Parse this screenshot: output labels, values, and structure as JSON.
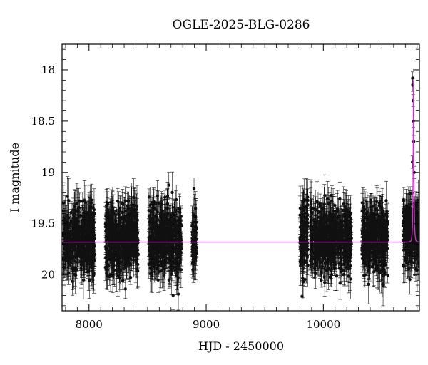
{
  "chart_data": {
    "type": "scatter",
    "title": "OGLE-2025-BLG-0286",
    "xlabel": "HJD - 2450000",
    "ylabel": "I magnitude",
    "xlim": [
      7770,
      10820
    ],
    "ylim": [
      20.35,
      17.75
    ],
    "y_inverted": true,
    "x_ticks": [
      8000,
      9000,
      10000
    ],
    "x_tick_labels": [
      "8000",
      "9000",
      "10000"
    ],
    "y_ticks": [
      18,
      18.5,
      19,
      19.5,
      20
    ],
    "y_tick_labels": [
      "18",
      "18.5",
      "19",
      "19.5",
      "20"
    ],
    "grid": false,
    "legend": "none",
    "colors": {
      "points": "#111111",
      "errorbars": "#111111",
      "model": "#cc33cc",
      "axes": "#000000"
    },
    "season_blocks": [
      {
        "x_start": 7780,
        "x_end": 8050,
        "mag_center": 19.65,
        "mag_spread": 0.3
      },
      {
        "x_start": 8140,
        "x_end": 8420,
        "mag_center": 19.65,
        "mag_spread": 0.3
      },
      {
        "x_start": 8510,
        "x_end": 8790,
        "mag_center": 19.66,
        "mag_spread": 0.32
      },
      {
        "x_start": 8880,
        "x_end": 8920,
        "mag_center": 19.65,
        "mag_spread": 0.28
      },
      {
        "x_start": 9800,
        "x_end": 9870,
        "mag_center": 19.66,
        "mag_spread": 0.35
      },
      {
        "x_start": 9890,
        "x_end": 10240,
        "mag_center": 19.66,
        "mag_spread": 0.3
      },
      {
        "x_start": 10330,
        "x_end": 10550,
        "mag_center": 19.65,
        "mag_spread": 0.3
      },
      {
        "x_start": 10680,
        "x_end": 10820,
        "mag_center": 19.6,
        "mag_spread": 0.3
      }
    ],
    "model": {
      "baseline_mag": 19.68,
      "peak_time": 10770,
      "peak_mag": 18.1,
      "tE": 7
    },
    "peak_points": [
      {
        "x": 10762,
        "y": 18.08
      },
      {
        "x": 10764,
        "y": 18.15
      },
      {
        "x": 10766,
        "y": 18.3
      },
      {
        "x": 10768,
        "y": 18.5
      },
      {
        "x": 10760,
        "y": 18.9
      },
      {
        "x": 10772,
        "y": 18.7
      },
      {
        "x": 10758,
        "y": 19.2
      },
      {
        "x": 10775,
        "y": 19.0
      },
      {
        "x": 10754,
        "y": 19.4
      },
      {
        "x": 10780,
        "y": 19.3
      }
    ]
  }
}
